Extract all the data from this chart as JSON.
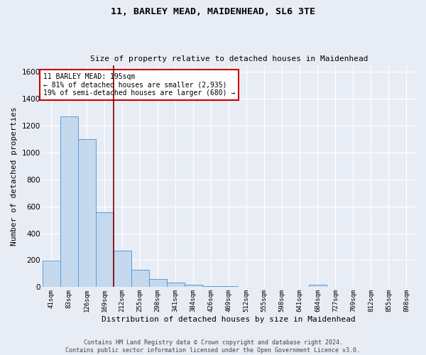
{
  "title": "11, BARLEY MEAD, MAIDENHEAD, SL6 3TE",
  "subtitle": "Size of property relative to detached houses in Maidenhead",
  "xlabel": "Distribution of detached houses by size in Maidenhead",
  "ylabel": "Number of detached properties",
  "footer_line1": "Contains HM Land Registry data © Crown copyright and database right 2024.",
  "footer_line2": "Contains public sector information licensed under the Open Government Licence v3.0.",
  "categories": [
    "41sqm",
    "83sqm",
    "126sqm",
    "169sqm",
    "212sqm",
    "255sqm",
    "298sqm",
    "341sqm",
    "384sqm",
    "426sqm",
    "469sqm",
    "512sqm",
    "555sqm",
    "598sqm",
    "641sqm",
    "684sqm",
    "727sqm",
    "769sqm",
    "812sqm",
    "855sqm",
    "898sqm"
  ],
  "values": [
    197,
    1270,
    1100,
    554,
    270,
    130,
    60,
    33,
    18,
    10,
    5,
    4,
    3,
    2,
    0,
    18,
    0,
    0,
    0,
    0,
    0
  ],
  "bar_color": "#c5d9ee",
  "bar_edge_color": "#5b9bd5",
  "background_color": "#e8edf5",
  "grid_color": "#ffffff",
  "vline_x": 3.5,
  "vline_color": "#7b0000",
  "annotation_text": "11 BARLEY MEAD: 195sqm\n← 81% of detached houses are smaller (2,935)\n19% of semi-detached houses are larger (680) →",
  "annotation_box_color": "#ffffff",
  "annotation_box_edge_color": "#cc0000",
  "ylim": [
    0,
    1650
  ],
  "yticks": [
    0,
    200,
    400,
    600,
    800,
    1000,
    1200,
    1400,
    1600
  ],
  "figwidth": 6.0,
  "figheight": 5.0,
  "dpi": 100
}
